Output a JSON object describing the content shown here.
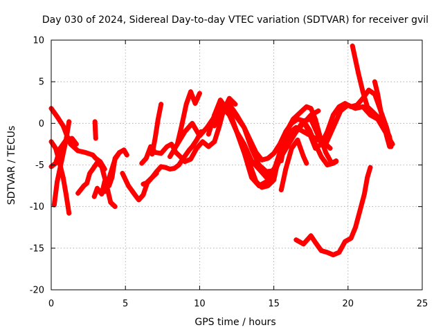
{
  "chart_data": {
    "type": "scatter",
    "title": "Day 030 of 2024, Sidereal Day-to-day VTEC variation (SDTVAR) for receiver gvil",
    "xlabel": "GPS time / hours",
    "ylabel": "SDTVAR / TECUs",
    "xlim": [
      0,
      25
    ],
    "ylim": [
      -20,
      10
    ],
    "xticks": [
      0,
      5,
      10,
      15,
      20,
      25
    ],
    "yticks": [
      -20,
      -15,
      -10,
      -5,
      0,
      5,
      10
    ],
    "xtick_labels": [
      "0",
      "5",
      "10",
      "15",
      "20",
      "25"
    ],
    "ytick_labels": [
      "-20",
      "-15",
      "-10",
      "-5",
      "0",
      "5",
      "10"
    ],
    "grid": true,
    "legend": "none",
    "color": "#ff0000",
    "series": [
      {
        "name": "track-1",
        "x": [
          0.0,
          0.4,
          0.8,
          1.0,
          1.3,
          1.8,
          2.3,
          2.8,
          3.0,
          3.3,
          3.6
        ],
        "y": [
          1.8,
          0.8,
          -0.3,
          -1.2,
          -2.5,
          -3.3,
          -3.5,
          -3.8,
          -4.2,
          -4.6,
          -5.5
        ]
      },
      {
        "name": "track-2",
        "x": [
          0.0,
          0.3,
          0.5,
          0.8,
          1.0,
          1.2
        ],
        "y": [
          -2.2,
          -3.0,
          -4.3,
          -6.5,
          -8.5,
          -10.8
        ]
      },
      {
        "name": "track-3",
        "x": [
          0.2,
          0.4,
          0.7,
          1.0,
          1.2
        ],
        "y": [
          -9.8,
          -7.0,
          -4.5,
          -2.0,
          0.2
        ]
      },
      {
        "name": "track-4",
        "x": [
          0.0,
          0.3,
          0.6,
          1.0,
          1.4,
          1.7
        ],
        "y": [
          -5.2,
          -4.8,
          -3.0,
          -2.0,
          -1.8,
          -2.5
        ]
      },
      {
        "name": "track-5",
        "x": [
          1.8,
          2.2,
          2.4,
          2.6,
          2.8,
          3.1,
          3.4,
          3.7,
          4.0,
          4.3
        ],
        "y": [
          -8.4,
          -7.5,
          -7.2,
          -6.0,
          -5.5,
          -4.7,
          -5.2,
          -7.2,
          -9.5,
          -10.0
        ]
      },
      {
        "name": "track-6",
        "x": [
          2.9,
          3.1,
          3.4,
          3.6,
          3.9,
          4.1,
          4.3,
          4.6
        ],
        "y": [
          -8.8,
          -7.8,
          -8.5,
          -7.0,
          -7.5,
          -6.5,
          -4.2,
          -3.5
        ]
      },
      {
        "name": "track-7",
        "x": [
          3.6,
          4.0,
          4.3,
          4.6,
          4.9,
          5.1
        ],
        "y": [
          -8.2,
          -6.0,
          -4.3,
          -3.5,
          -3.2,
          -3.8
        ]
      },
      {
        "name": "track-8",
        "x": [
          2.95,
          2.97,
          3.0
        ],
        "y": [
          0.2,
          -0.8,
          -1.8
        ]
      },
      {
        "name": "track-9",
        "x": [
          4.8,
          5.2,
          5.6,
          5.9,
          6.2,
          6.5,
          6.8,
          7.1
        ],
        "y": [
          -6.0,
          -7.5,
          -8.5,
          -9.2,
          -8.6,
          -7.0,
          -6.5,
          -6.0
        ]
      },
      {
        "name": "track-10",
        "x": [
          6.2,
          6.5,
          6.8,
          7.1,
          7.4,
          7.7,
          8.0,
          8.3,
          8.6,
          8.9,
          9.3,
          9.5,
          9.8,
          10.1
        ],
        "y": [
          -7.3,
          -7.1,
          -6.5,
          -5.8,
          -5.2,
          -5.3,
          -5.5,
          -5.4,
          -5.0,
          -4.2,
          -3.2,
          -2.8,
          -2.0,
          -1.0
        ]
      },
      {
        "name": "track-11",
        "x": [
          6.8,
          7.0,
          7.2,
          7.4
        ],
        "y": [
          -3.7,
          -1.8,
          0.5,
          2.3
        ]
      },
      {
        "name": "track-12",
        "x": [
          6.1,
          6.4,
          6.7,
          7.0,
          7.4,
          7.8,
          8.1,
          8.4,
          8.7,
          9.0,
          9.4,
          9.8,
          10.2,
          10.6,
          11.0,
          11.3,
          11.6,
          12.0,
          12.4
        ],
        "y": [
          -4.8,
          -4.2,
          -2.8,
          -3.5,
          -3.6,
          -2.8,
          -2.5,
          -3.5,
          -4.0,
          -4.6,
          -4.3,
          -3.0,
          -2.2,
          -2.8,
          -2.2,
          -0.5,
          1.5,
          3.0,
          2.3
        ]
      },
      {
        "name": "track-13",
        "x": [
          8.5,
          8.8,
          9.1,
          9.4,
          9.7,
          10.0
        ],
        "y": [
          -2.5,
          -0.2,
          2.3,
          3.8,
          2.4,
          3.6
        ]
      },
      {
        "name": "track-14",
        "x": [
          8.0,
          8.5,
          9.0,
          9.5,
          10.0,
          10.5,
          11.0,
          11.5,
          12.0,
          12.5,
          13.0,
          13.5,
          14.0,
          14.5,
          15.0,
          15.5,
          16.0,
          16.5,
          17.0,
          17.5,
          18.0,
          18.5,
          19.0,
          19.5,
          20.0,
          20.5,
          21.0,
          21.5,
          22.0,
          22.5,
          23.0
        ],
        "y": [
          -4.0,
          -2.5,
          -1.0,
          0.0,
          -1.5,
          -0.5,
          0.8,
          2.0,
          1.0,
          -1.0,
          -3.5,
          -6.5,
          -7.5,
          -7.0,
          -6.0,
          -4.0,
          -2.0,
          -1.0,
          0.3,
          0.5,
          -1.5,
          -2.5,
          -0.5,
          1.5,
          2.2,
          1.8,
          2.0,
          1.0,
          0.5,
          -1.0,
          -2.5
        ]
      },
      {
        "name": "track-15",
        "x": [
          10.6,
          11.0,
          11.4,
          11.8,
          12.2,
          12.6,
          13.0,
          13.4,
          13.8,
          14.2,
          14.6,
          15.0,
          15.4,
          15.8,
          16.2,
          16.6,
          17.0,
          17.4,
          17.8,
          18.2,
          18.6,
          19.0,
          19.4,
          19.8,
          20.2,
          20.6,
          21.0,
          21.4,
          21.8,
          22.2,
          22.6,
          22.9
        ],
        "y": [
          -1.3,
          1.0,
          2.8,
          1.8,
          0.5,
          -1.5,
          -3.5,
          -5.0,
          -7.0,
          -7.7,
          -7.5,
          -6.8,
          -3.5,
          -1.0,
          0.0,
          0.5,
          0.3,
          -1.2,
          -3.0,
          -2.5,
          -1.0,
          1.0,
          2.0,
          2.4,
          2.0,
          2.2,
          3.0,
          4.0,
          3.5,
          1.5,
          -0.5,
          -2.5
        ]
      },
      {
        "name": "track-16",
        "x": [
          11.0,
          11.5,
          12.0,
          12.5,
          13.0,
          13.5,
          14.0,
          14.5,
          15.0,
          15.5,
          16.0,
          16.5,
          17.0,
          17.5,
          18.0
        ],
        "y": [
          1.0,
          2.5,
          1.2,
          -1.0,
          -2.5,
          -4.5,
          -5.5,
          -6.5,
          -5.5,
          -4.0,
          -2.5,
          -1.0,
          0.0,
          1.0,
          1.5
        ]
      },
      {
        "name": "track-17",
        "x": [
          11.0,
          11.4,
          11.8,
          12.2,
          12.6,
          13.0,
          13.4,
          13.8,
          14.2,
          14.6,
          15.0,
          15.4,
          15.8,
          16.2,
          16.6,
          17.0,
          17.4,
          17.8,
          18.2,
          18.6,
          19.0,
          19.2
        ],
        "y": [
          -0.3,
          1.8,
          2.2,
          1.5,
          0.5,
          -0.5,
          -2.0,
          -3.5,
          -4.4,
          -4.2,
          -3.6,
          -2.5,
          -1.0,
          0.0,
          0.5,
          0.3,
          -0.8,
          -2.5,
          -4.0,
          -5.0,
          -4.8,
          -4.6
        ]
      },
      {
        "name": "track-18",
        "x": [
          15.5,
          15.7,
          16.0,
          16.3,
          16.6,
          16.9,
          17.2,
          17.5,
          17.8,
          18.1,
          18.5,
          18.9,
          19.2
        ],
        "y": [
          -4.5,
          -2.5,
          -0.5,
          0.5,
          1.0,
          1.5,
          2.0,
          1.8,
          0.5,
          -1.5,
          -3.5,
          -4.8,
          -4.5
        ]
      },
      {
        "name": "track-19",
        "x": [
          12.0,
          12.5,
          13.0,
          13.5,
          14.0,
          14.5,
          15.0,
          15.5,
          16.0,
          16.5,
          17.0,
          17.5,
          18.0,
          18.5,
          18.8
        ],
        "y": [
          2.3,
          1.0,
          -0.5,
          -3.0,
          -5.0,
          -5.8,
          -5.7,
          -3.0,
          -1.2,
          -0.5,
          -1.0,
          -1.5,
          -2.0,
          -2.5,
          -3.0
        ]
      },
      {
        "name": "track-20",
        "x": [
          15.5,
          15.8,
          16.2,
          16.6,
          17.0,
          17.2
        ],
        "y": [
          -8.0,
          -5.5,
          -3.0,
          -2.0,
          -4.0,
          -4.8
        ]
      },
      {
        "name": "track-21",
        "x": [
          16.5,
          17.0,
          17.5,
          17.8,
          18.2,
          18.6,
          19.0,
          19.4,
          19.8,
          20.2,
          20.5,
          20.8,
          21.1,
          21.3,
          21.5
        ],
        "y": [
          -14.0,
          -14.5,
          -13.5,
          -14.3,
          -15.3,
          -15.5,
          -15.8,
          -15.5,
          -14.2,
          -13.8,
          -12.5,
          -10.5,
          -8.5,
          -6.5,
          -5.3
        ]
      },
      {
        "name": "track-22",
        "x": [
          20.3,
          20.7,
          21.0,
          21.3,
          21.6,
          22.0,
          22.4,
          22.8,
          22.9
        ],
        "y": [
          9.3,
          6.0,
          3.8,
          2.0,
          1.5,
          0.8,
          -0.2,
          -1.6,
          -2.8
        ]
      },
      {
        "name": "track-23",
        "x": [
          21.8,
          22.0,
          22.2,
          22.4,
          22.6,
          22.8
        ],
        "y": [
          5.0,
          3.5,
          1.5,
          0.0,
          -1.5,
          -2.8
        ]
      }
    ]
  }
}
